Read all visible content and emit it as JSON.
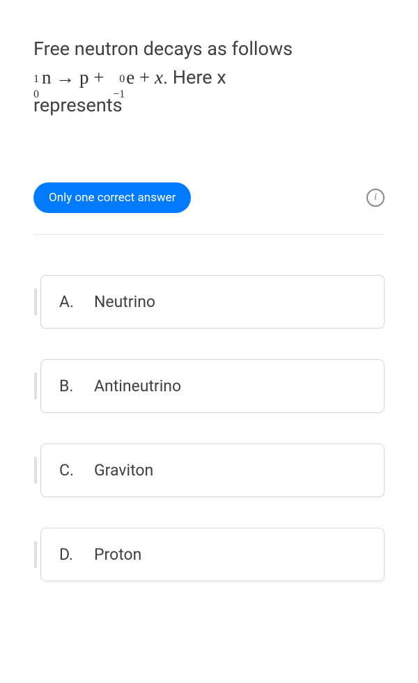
{
  "question": {
    "line1": "Free neutron decays as follows",
    "line2_suffix": ". Here x",
    "line3": "represents",
    "equation": {
      "n_top": "1",
      "n_bot": "0",
      "n_sym": "n",
      "arrow": "→",
      "p_sym": "p",
      "plus": "+",
      "e_top": "0",
      "e_bot": "−1",
      "e_sym": "e",
      "x_sym": "x"
    }
  },
  "badge": {
    "label": "Only one correct answer"
  },
  "info_icon": "i",
  "options": [
    {
      "letter": "A.",
      "text": "Neutrino"
    },
    {
      "letter": "B.",
      "text": "Antineutrino"
    },
    {
      "letter": "C.",
      "text": "Graviton"
    },
    {
      "letter": "D.",
      "text": "Proton"
    }
  ],
  "colors": {
    "badge_bg": "#007aff",
    "badge_text": "#ffffff",
    "text": "#404040",
    "border": "#d8d8d8",
    "divider": "#e5e5e5",
    "info_border": "#888888"
  }
}
